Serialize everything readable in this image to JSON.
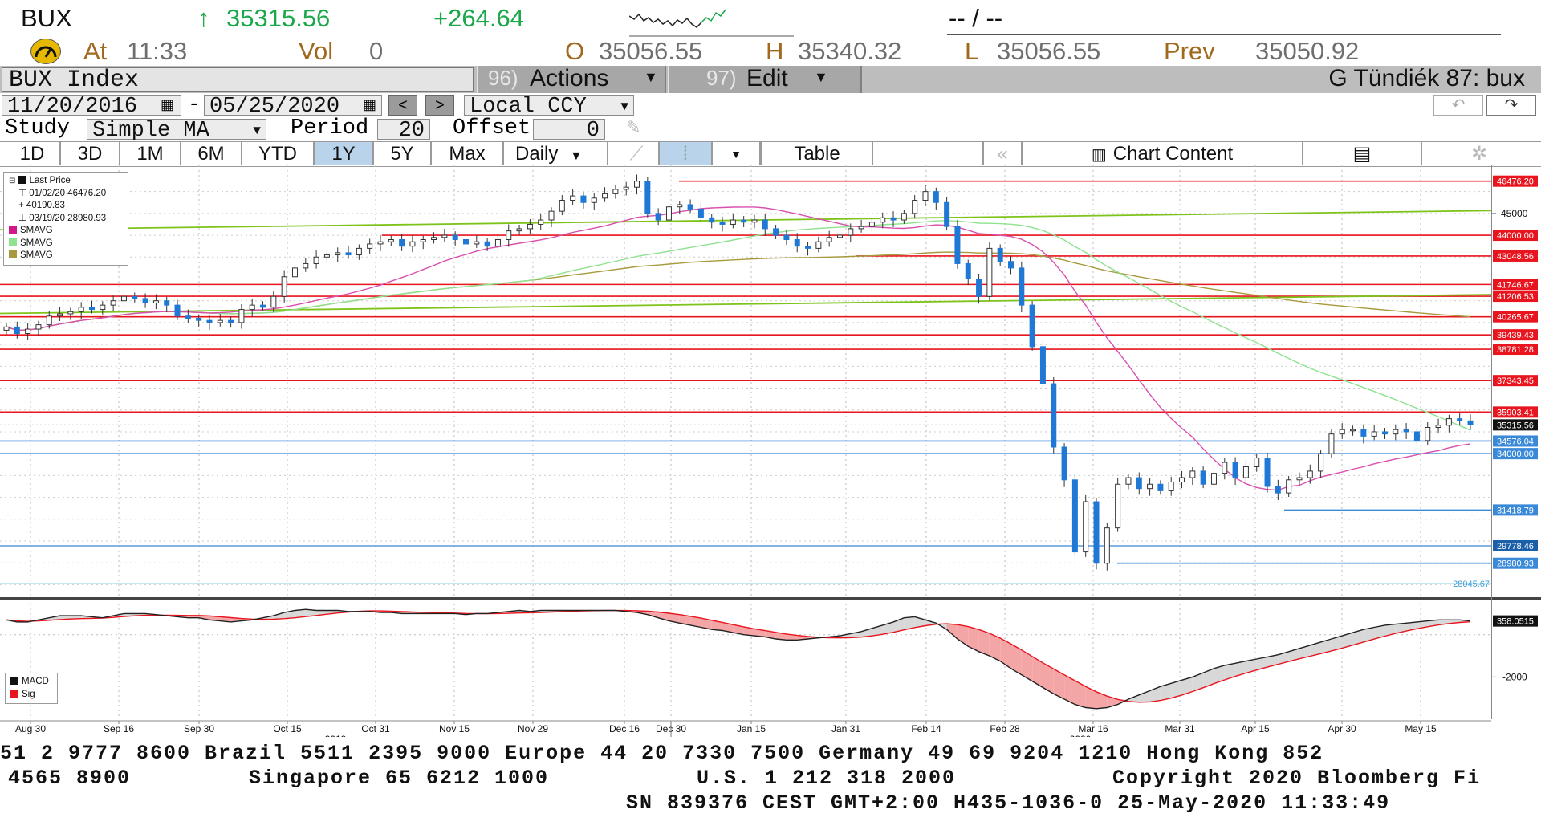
{
  "quote": {
    "ticker": "BUX",
    "arrow": "↑",
    "last": "35315.56",
    "change": "+264.64",
    "bid_ask": "-- / --",
    "time_prefix": "At",
    "time": "11:33",
    "vol_label": "Vol",
    "vol": "0",
    "open_label": "O",
    "open": "35056.55",
    "high_label": "H",
    "high": "35340.32",
    "low_label": "L",
    "low": "35056.55",
    "prev_label": "Prev",
    "prev": "35050.92"
  },
  "titlebar": {
    "security": "BUX Index",
    "actions_num": "96)",
    "actions": "Actions",
    "edit_num": "97)",
    "edit": "Edit",
    "workspace": "G Tündiék 87: bux"
  },
  "range": {
    "start": "11/20/2016",
    "sep": "-",
    "end": "05/25/2020",
    "currency": "Local CCY"
  },
  "study": {
    "label": "Study",
    "value": "Simple MA",
    "period_label": "Period",
    "period": "20",
    "offset_label": "Offset",
    "offset": "0"
  },
  "tabs": [
    "1D",
    "3D",
    "1M",
    "6M",
    "YTD",
    "1Y",
    "5Y",
    "Max"
  ],
  "selected_tab": "1Y",
  "periodicity": "Daily",
  "table_label": "Table",
  "chart_content_label": "Chart Content",
  "legend": {
    "title": "Last Price",
    "high": "01/02/20 46476.20",
    "avg": "40190.83",
    "low": "03/19/20 28980.93",
    "sma1": "SMAVG",
    "sma2": "SMAVG",
    "sma3": "SMAVG"
  },
  "macd_legend": {
    "macd": "MACD",
    "sig": "Sig"
  },
  "colors": {
    "candle": "#1f78d6",
    "sma20": "#d94fae",
    "sma50": "#8fe28f",
    "sma200": "#a89a3c",
    "resistance": "#e8141e",
    "support": "#3a88d8",
    "trend": "#7ec31a",
    "macd": "#222222",
    "signal": "#e8141e"
  },
  "chart_data": {
    "type": "candlestick",
    "ylim": [
      27500,
      47200
    ],
    "y_ticks": [
      45000
    ],
    "price_labels": [
      "46476.20",
      "44000.00",
      "43048.56",
      "41746.67",
      "41206.53",
      "40265.67",
      "39439.43",
      "38781.28",
      "37343.45",
      "35903.41",
      "35315.56",
      "34576.04",
      "34000.00",
      "31418.79",
      "29778.46",
      "28980.93",
      "28045.67"
    ],
    "resistance_levels": [
      46476.2,
      44000.0,
      43048.56,
      41746.67,
      41206.53,
      40265.67,
      39439.43,
      38781.28,
      37343.45,
      35903.41
    ],
    "support_levels": [
      34576.04,
      34000.0,
      31418.79,
      28980.93
    ],
    "other_levels": [
      29778.46,
      28045.67
    ],
    "x_tick_labels": [
      "Aug 30",
      "Sep 16",
      "Sep 30",
      "Oct 15",
      "Oct 31",
      "Nov 15",
      "Nov 29",
      "Dec 16",
      "Dec 30",
      "Jan 15",
      "Jan 31",
      "Feb 14",
      "Feb 28",
      "Mar 16",
      "Mar 31",
      "Apr 15",
      "Apr 30",
      "May 15"
    ],
    "year_labels": [
      "2019",
      "2020"
    ],
    "close": [
      39800,
      39500,
      39700,
      39900,
      40300,
      40400,
      40500,
      40700,
      40600,
      40800,
      41000,
      41200,
      41100,
      40900,
      41000,
      40800,
      40300,
      40200,
      40100,
      40000,
      40100,
      40000,
      40600,
      40800,
      40700,
      41200,
      42100,
      42500,
      42700,
      43000,
      43100,
      43200,
      43100,
      43400,
      43600,
      43700,
      43800,
      43500,
      43700,
      43800,
      43900,
      44000,
      43800,
      43600,
      43700,
      43500,
      43800,
      44200,
      44300,
      44500,
      44700,
      45100,
      45600,
      45800,
      45500,
      45700,
      45900,
      46100,
      46200,
      46476,
      45000,
      44700,
      45300,
      45400,
      45200,
      44800,
      44600,
      44500,
      44700,
      44600,
      44700,
      44300,
      44000,
      43800,
      43500,
      43400,
      43700,
      43900,
      44000,
      44300,
      44400,
      44600,
      44800,
      44700,
      45000,
      45600,
      46000,
      45500,
      44400,
      42700,
      42000,
      41200,
      43400,
      42800,
      42500,
      40800,
      38900,
      37200,
      34300,
      32800,
      29500,
      31800,
      28980,
      30600,
      32600,
      32900,
      32400,
      32600,
      32300,
      32700,
      32900,
      33200,
      32600,
      33100,
      33600,
      32900,
      33400,
      33800,
      32500,
      32200,
      32800,
      32900,
      33200,
      34000,
      34900,
      35100,
      35100,
      34800,
      35000,
      34900,
      35100,
      35000,
      34600,
      35200,
      35300,
      35600,
      35500,
      35315
    ],
    "macd": [
      700,
      600,
      600,
      700,
      800,
      900,
      900,
      900,
      850,
      800,
      900,
      1000,
      1000,
      1000,
      950,
      900,
      850,
      800,
      800,
      700,
      650,
      600,
      650,
      700,
      800,
      900,
      1050,
      1150,
      1200,
      1150,
      1150,
      1150,
      1100,
      1100,
      1100,
      1050,
      1050,
      1000,
      1000,
      1000,
      1000,
      1000,
      1000,
      950,
      1000,
      1000,
      1050,
      1100,
      1150,
      1100,
      1150,
      1150,
      1150,
      1150,
      1150,
      1150,
      1150,
      1150,
      1100,
      1050,
      950,
      800,
      650,
      550,
      450,
      350,
      250,
      200,
      100,
      0,
      -50,
      -100,
      -200,
      -250,
      -250,
      -200,
      -150,
      -100,
      -50,
      50,
      150,
      300,
      450,
      600,
      800,
      850,
      700,
      550,
      250,
      -200,
      -550,
      -800,
      -1000,
      -1250,
      -1600,
      -1900,
      -2200,
      -2500,
      -2800,
      -3050,
      -3300,
      -3450,
      -3500,
      -3450,
      -3300,
      -3050,
      -2850,
      -2650,
      -2450,
      -2300,
      -2150,
      -2000,
      -1800,
      -1600,
      -1450,
      -1350,
      -1250,
      -1150,
      -1050,
      -950,
      -800,
      -650,
      -500,
      -350,
      -200,
      -50,
      100,
      250,
      350,
      450,
      500,
      550,
      600,
      650,
      700,
      700,
      700,
      650
    ]
  }
}
